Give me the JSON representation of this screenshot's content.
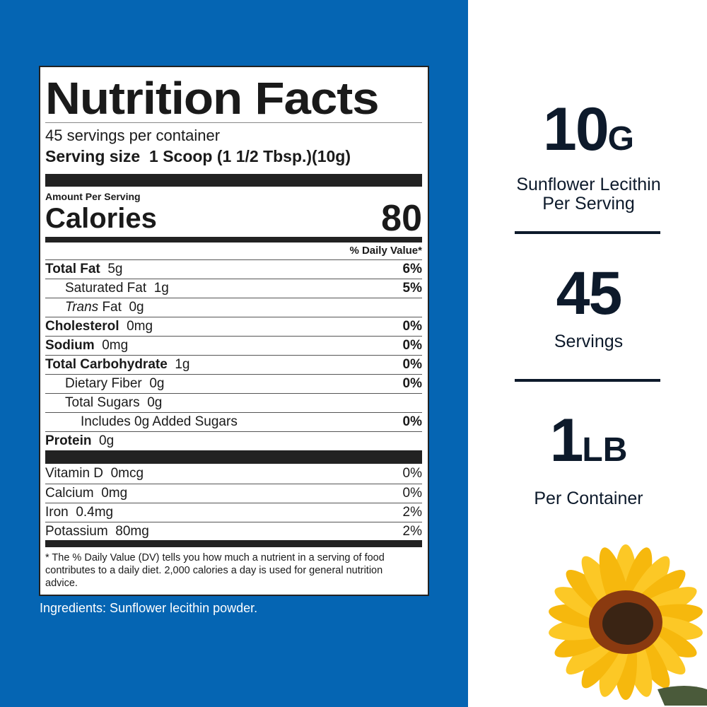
{
  "colors": {
    "background_blue": "#0565b3",
    "text_dark": "#0d1a2b"
  },
  "label": {
    "title": "Nutrition Facts",
    "servings_per_container": "45 servings per container",
    "serving_size_label": "Serving size",
    "serving_size_value": "1 Scoop (1 1/2 Tbsp.)(10g)",
    "amount_per_serving": "Amount Per Serving",
    "calories_label": "Calories",
    "calories_value": "80",
    "dv_header": "% Daily Value*",
    "nutrients": [
      {
        "name": "Total Fat",
        "amount": "5g",
        "dv": "6%"
      },
      {
        "name": "Saturated Fat",
        "amount": "1g",
        "dv": "5%"
      },
      {
        "name": "Trans",
        "name_suffix": "Fat",
        "amount": "0g",
        "dv": ""
      },
      {
        "name": "Cholesterol",
        "amount": "0mg",
        "dv": "0%"
      },
      {
        "name": "Sodium",
        "amount": "0mg",
        "dv": "0%"
      },
      {
        "name": "Total Carbohydrate",
        "amount": "1g",
        "dv": "0%"
      },
      {
        "name": "Dietary Fiber",
        "amount": "0g",
        "dv": "0%"
      },
      {
        "name": "Total Sugars",
        "amount": "0g",
        "dv": ""
      },
      {
        "name": "Includes 0g Added Sugars",
        "amount": "",
        "dv": "0%"
      },
      {
        "name": "Protein",
        "amount": "0g",
        "dv": ""
      }
    ],
    "vitamins": [
      {
        "name": "Vitamin D",
        "amount": "0mcg",
        "dv": "0%"
      },
      {
        "name": "Calcium",
        "amount": "0mg",
        "dv": "0%"
      },
      {
        "name": "Iron",
        "amount": "0.4mg",
        "dv": "2%"
      },
      {
        "name": "Potassium",
        "amount": "80mg",
        "dv": "2%"
      }
    ],
    "footnote": "* The % Daily Value (DV) tells you how much a nutrient in a serving of food contributes to a daily diet. 2,000 calories a day is used for general nutrition advice."
  },
  "ingredients": "Ingredients: Sunflower lecithin powder.",
  "stats": [
    {
      "value": "10",
      "unit": "G",
      "line1": "Sunflower Lecithin",
      "line2": "Per Serving"
    },
    {
      "value": "45",
      "unit": "",
      "line1": "Servings",
      "line2": ""
    },
    {
      "value": "1",
      "unit": "LB",
      "line1": "Per Container",
      "line2": ""
    }
  ]
}
